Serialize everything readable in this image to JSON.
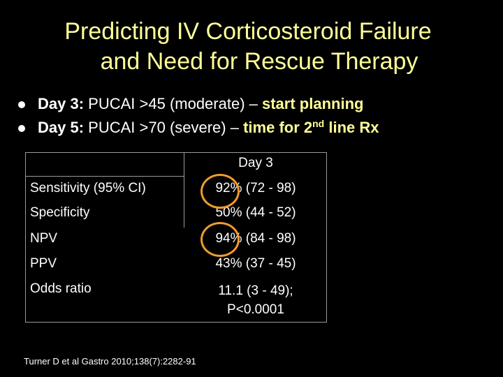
{
  "title": {
    "line1": "Predicting IV Corticosteroid Failure",
    "line2": "and Need for Rescue Therapy"
  },
  "bullets": [
    {
      "lead": "Day 3:",
      "text": " PUCAI >45 (moderate) – ",
      "emphasis": "start planning"
    },
    {
      "lead": "Day 5:",
      "text": " PUCAI >70 (severe) – ",
      "emphasis_pre": "time for 2",
      "emphasis_sup": "nd",
      "emphasis_post": " line Rx"
    }
  ],
  "table": {
    "column_header": "Day 3",
    "rows": [
      {
        "label": "Sensitivity (95% CI)",
        "value": "92% (72 - 98)"
      },
      {
        "label": "Specificity",
        "value": "50% (44 - 52)"
      },
      {
        "label": "NPV",
        "value": "94% (84 - 98)"
      },
      {
        "label": "PPV",
        "value": "43% (37 - 45)"
      },
      {
        "label": "Odds ratio",
        "value_line1": "11.1 (3 - 49);",
        "value_line2": "P<0.0001"
      }
    ]
  },
  "citation": "Turner D et al Gastro 2010;138(7):2282-91",
  "colors": {
    "background": "#000000",
    "title": "#ffff99",
    "emphasis": "#ffff99",
    "body_text": "#ffffff",
    "highlight_circle": "#f29a2e",
    "table_border": "#9a9a9a"
  }
}
